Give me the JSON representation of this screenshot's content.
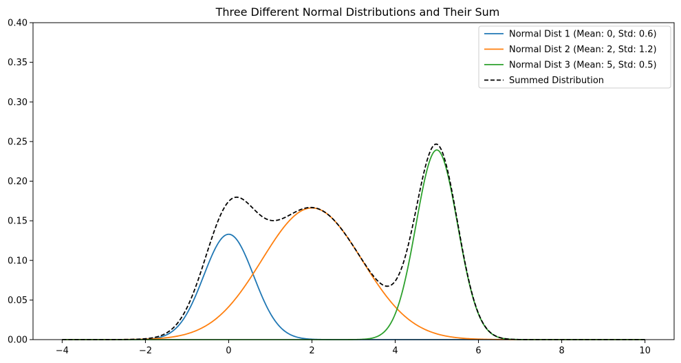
{
  "chart_data": {
    "type": "line",
    "title": "Three Different Normal Distributions and Their Sum",
    "xlabel": "",
    "ylabel": "",
    "xlim": [
      -4.7,
      10.7
    ],
    "ylim": [
      0,
      0.4
    ],
    "x_ticks": [
      -4,
      -2,
      0,
      2,
      4,
      6,
      8,
      10
    ],
    "x_tick_labels": [
      "−4",
      "−2",
      "0",
      "2",
      "4",
      "6",
      "8",
      "10"
    ],
    "y_ticks": [
      0,
      0.05,
      0.1,
      0.15,
      0.2,
      0.25,
      0.3,
      0.35,
      0.4
    ],
    "y_tick_labels": [
      "0.00",
      "0.05",
      "0.10",
      "0.15",
      "0.20",
      "0.25",
      "0.30",
      "0.35",
      "0.40"
    ],
    "grid": false,
    "legend_position": "top-right",
    "x_range": [
      -4,
      10
    ],
    "series": [
      {
        "name": "Normal Dist 1 (Mean: 0, Std: 0.6)",
        "color": "#1f77b4",
        "style": "solid",
        "mean": 0,
        "std": 0.6,
        "weight": 0.2
      },
      {
        "name": "Normal Dist 2 (Mean: 2, Std: 1.2)",
        "color": "#ff7f0e",
        "style": "solid",
        "mean": 2,
        "std": 1.2,
        "weight": 0.5
      },
      {
        "name": "Normal Dist 3 (Mean: 5, Std: 0.5)",
        "color": "#2ca02c",
        "style": "solid",
        "mean": 5,
        "std": 0.5,
        "weight": 0.3
      },
      {
        "name": "Summed Distribution",
        "color": "#000000",
        "style": "dashed",
        "sum_of": [
          0,
          1,
          2
        ]
      }
    ]
  }
}
